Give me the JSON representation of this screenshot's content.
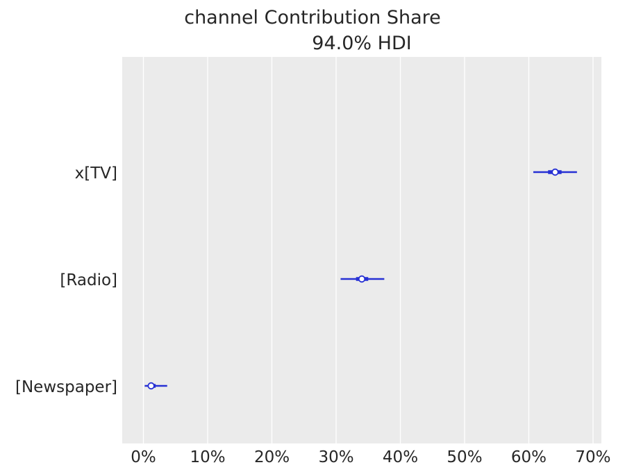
{
  "chart_data": {
    "type": "forest",
    "title": "channel Contribution Share",
    "subtitle": "94.0% HDI",
    "categories": [
      "x[TV]",
      "[Radio]",
      "[Newspaper]"
    ],
    "x_tick_labels": [
      "0%",
      "10%",
      "20%",
      "30%",
      "40%",
      "50%",
      "60%",
      "70%"
    ],
    "x_ticks": [
      0,
      0.1,
      0.2,
      0.3,
      0.4,
      0.5,
      0.6,
      0.7
    ],
    "xlim": [
      -0.033,
      0.713
    ],
    "grid": true,
    "series": [
      {
        "category": "x[TV]",
        "median": 0.641,
        "iqr": [
          0.63,
          0.651
        ],
        "hdi": [
          0.607,
          0.675
        ]
      },
      {
        "category": "[Radio]",
        "median": 0.34,
        "iqr": [
          0.331,
          0.35
        ],
        "hdi": [
          0.307,
          0.375
        ]
      },
      {
        "category": "[Newspaper]",
        "median": 0.012,
        "iqr": [
          0.008,
          0.019
        ],
        "hdi": [
          0.002,
          0.037
        ]
      }
    ],
    "colors": {
      "interval": "#2630d4",
      "marker_fill": "#ffffff",
      "plot_bg": "#ebebeb",
      "grid": "#ffffff",
      "text": "#262626"
    }
  }
}
